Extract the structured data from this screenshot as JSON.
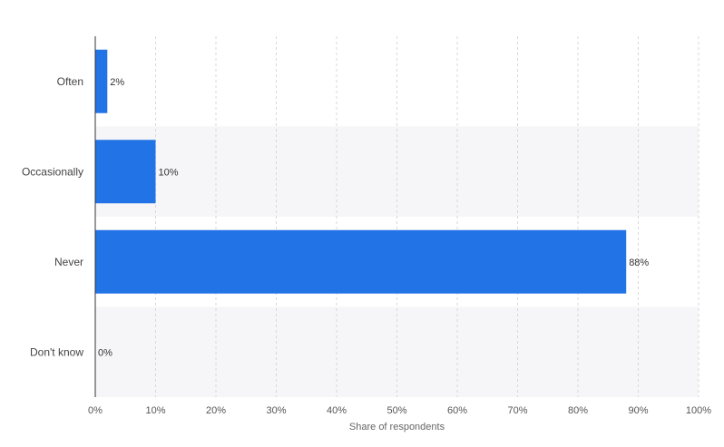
{
  "chart_data": {
    "type": "bar",
    "orientation": "horizontal",
    "categories": [
      "Often",
      "Occasionally",
      "Never",
      "Don't know"
    ],
    "values": [
      2,
      10,
      88,
      0
    ],
    "value_labels": [
      "2%",
      "10%",
      "88%",
      "0%"
    ],
    "xlabel": "Share of respondents",
    "xlim": [
      0,
      100
    ],
    "xticks": [
      "0%",
      "10%",
      "20%",
      "30%",
      "40%",
      "50%",
      "60%",
      "70%",
      "80%",
      "90%",
      "100%"
    ],
    "grid": true,
    "legend": "none",
    "bar_color": "#2273e6",
    "band_color": "#f6f6f9"
  }
}
